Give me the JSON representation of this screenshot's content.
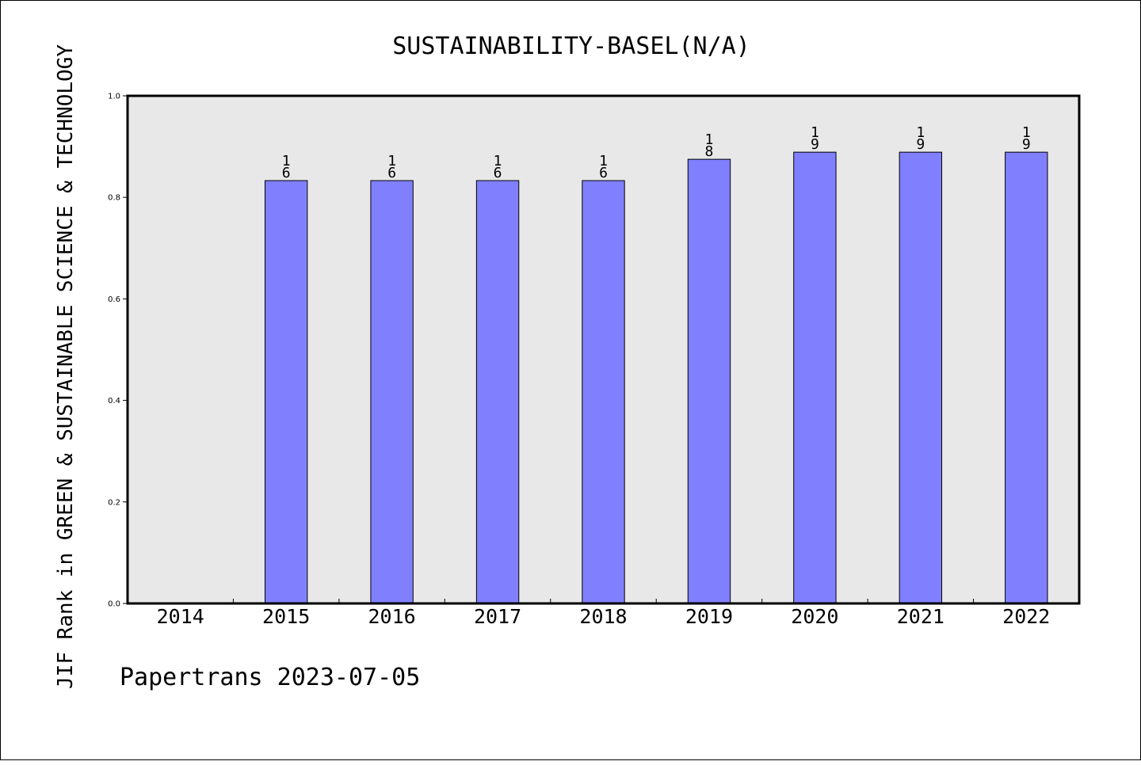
{
  "chart_data": {
    "type": "bar",
    "title": "SUSTAINABILITY-BASEL(N/A)",
    "xlabel": "",
    "ylabel": "JIF Rank in GREEN & SUSTAINABLE SCIENCE & TECHNOLOGY",
    "ylim": [
      0,
      1
    ],
    "y_ticks": [
      "0.0",
      "0.2",
      "0.4",
      "0.6",
      "0.8",
      "1.0"
    ],
    "categories": [
      "2014",
      "2015",
      "2016",
      "2017",
      "2018",
      "2019",
      "2020",
      "2021",
      "2022"
    ],
    "values": [
      null,
      0.833,
      0.833,
      0.833,
      0.833,
      0.875,
      0.889,
      0.889,
      0.889
    ],
    "bar_labels": [
      null,
      [
        "1",
        "6"
      ],
      [
        "1",
        "6"
      ],
      [
        "1",
        "6"
      ],
      [
        "1",
        "6"
      ],
      [
        "1",
        "8"
      ],
      [
        "1",
        "9"
      ],
      [
        "1",
        "9"
      ],
      [
        "1",
        "9"
      ]
    ],
    "grid": false,
    "bar_color": "#8080ff",
    "plot_background": "#e8e8e8"
  },
  "footer": "Papertrans 2023-07-05"
}
